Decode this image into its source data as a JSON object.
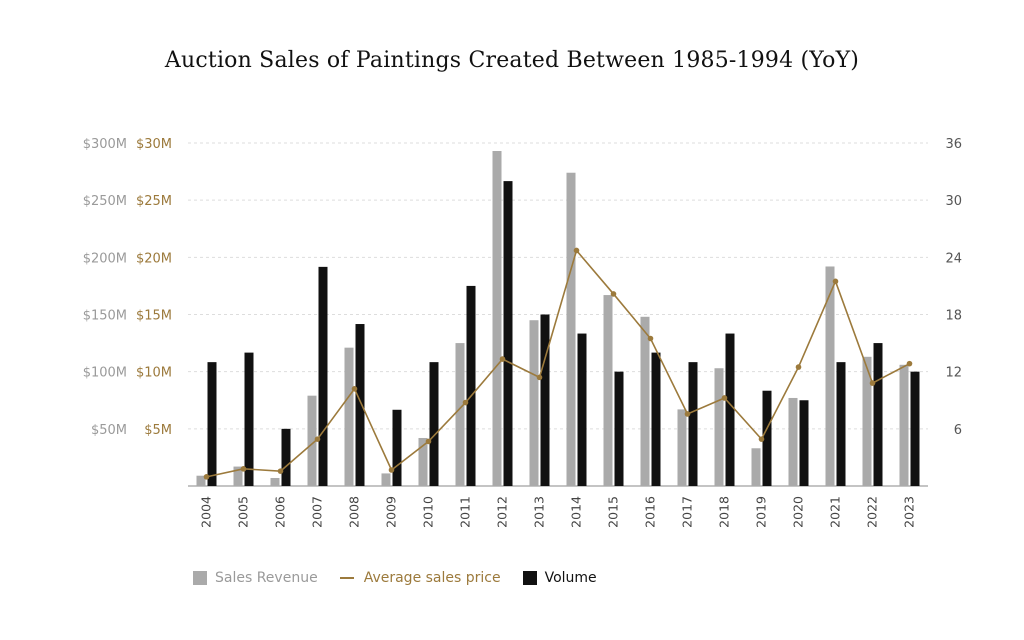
{
  "chart_data": {
    "type": "bar",
    "title": "Auction Sales of Paintings Created Between 1985-1994 (YoY)",
    "categories": [
      "2004",
      "2005",
      "2006",
      "2007",
      "2008",
      "2009",
      "2010",
      "2011",
      "2012",
      "2013",
      "2014",
      "2015",
      "2016",
      "2017",
      "2018",
      "2019",
      "2020",
      "2021",
      "2022",
      "2023"
    ],
    "series": [
      {
        "name": "Sales Revenue",
        "kind": "bar",
        "axis": "left-outer",
        "unit": "$M",
        "color": "#aaaaaa",
        "values": [
          9,
          17,
          7,
          79,
          121,
          11,
          42,
          125,
          293,
          145,
          274,
          167,
          148,
          67,
          103,
          33,
          77,
          192,
          113,
          106
        ]
      },
      {
        "name": "Average sales price",
        "kind": "line",
        "axis": "left-inner",
        "unit": "$M",
        "color": "#9c7a3c",
        "values": [
          0.8,
          1.5,
          1.3,
          4.1,
          8.5,
          1.4,
          3.9,
          7.3,
          11.1,
          9.5,
          20.6,
          16.8,
          12.9,
          6.3,
          7.7,
          4.1,
          10.4,
          17.9,
          9.0,
          10.7
        ]
      },
      {
        "name": "Volume",
        "kind": "bar",
        "axis": "right",
        "color": "#111111",
        "values": [
          13,
          14,
          6,
          23,
          17,
          8,
          13,
          21,
          32,
          18,
          16,
          12,
          14,
          13,
          16,
          10,
          9,
          13,
          15,
          12
        ]
      }
    ],
    "axes": {
      "left_outer": {
        "ticks": [
          "$50M",
          "$100M",
          "$150M",
          "$200M",
          "$250M",
          "$300M"
        ],
        "ylim": [
          0,
          300
        ],
        "color": "#9a9a9a"
      },
      "left_inner": {
        "ticks": [
          "$5M",
          "$10M",
          "$15M",
          "$20M",
          "$25M",
          "$30M"
        ],
        "ylim": [
          0,
          30
        ],
        "color": "#9c7a3c"
      },
      "right": {
        "ticks": [
          "6",
          "12",
          "18",
          "24",
          "30",
          "36"
        ],
        "ylim": [
          0,
          36
        ],
        "color": "#555555"
      }
    },
    "grid": true,
    "legend_position": "bottom-left"
  }
}
